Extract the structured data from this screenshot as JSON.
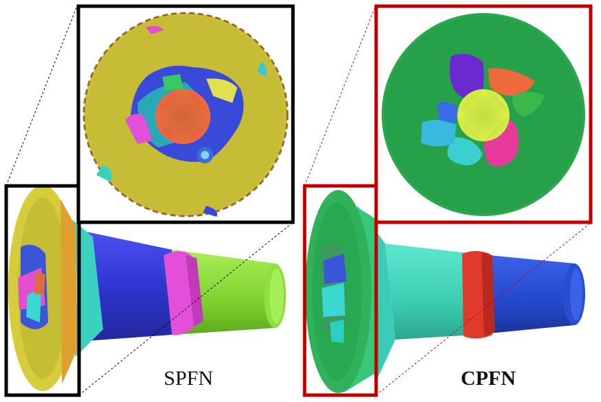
{
  "labels": {
    "left": "SPFN",
    "right": "CPFN"
  },
  "colors": {
    "left_frame": "#000000",
    "right_frame": "#c00000",
    "spfn_head": "#c8c23a",
    "cpfn_head": "#27a84e",
    "shaft_blue": "#3340d8",
    "shaft_green": "#8ad93a",
    "shaft_cyan": "#3ad2b8",
    "ring_magenta": "#e050d8",
    "ring_red": "#e03a2c",
    "center_orange": "#e0603a",
    "center_yellow": "#c8e040"
  }
}
